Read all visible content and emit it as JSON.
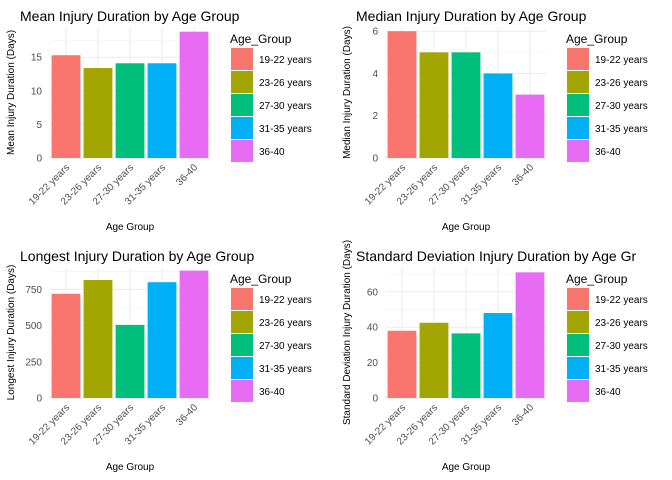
{
  "palette": [
    "#F8766D",
    "#A3A500",
    "#00BF7D",
    "#00B0F6",
    "#E76BF3"
  ],
  "chart_data": [
    {
      "type": "bar",
      "title": "Mean Injury Duration by Age Group",
      "xlabel": "Age Group",
      "ylabel": "Mean Injury Duration (Days)",
      "categories": [
        "19-22 years",
        "23-26 years",
        "27-30 years",
        "31-35 years",
        "36-40"
      ],
      "values": [
        15.3,
        13.4,
        14.1,
        14.1,
        18.8
      ],
      "ylim": [
        0,
        19.5
      ],
      "yticks": [
        0,
        5,
        10,
        15
      ],
      "grid": true,
      "legend": {
        "title": "Age_Group",
        "position": "right",
        "labels": [
          "19-22 years",
          "23-26 years",
          "27-30 years",
          "31-35 years",
          "36-40"
        ]
      }
    },
    {
      "type": "bar",
      "title": "Median Injury Duration by Age Group",
      "xlabel": "Age Group",
      "ylabel": "Median Injury Duration (Days)",
      "categories": [
        "19-22 years",
        "23-26 years",
        "27-30 years",
        "31-35 years",
        "36-40"
      ],
      "values": [
        6,
        5,
        5,
        4,
        3
      ],
      "ylim": [
        0,
        6.2
      ],
      "yticks": [
        0,
        2,
        4,
        6
      ],
      "grid": true,
      "legend": {
        "title": "Age_Group",
        "position": "right",
        "labels": [
          "19-22 years",
          "23-26 years",
          "27-30 years",
          "31-35 years",
          "36-40"
        ]
      }
    },
    {
      "type": "bar",
      "title": "Longest Injury Duration by Age Group",
      "xlabel": "Age Group",
      "ylabel": "Longest Injury Duration (Days)",
      "categories": [
        "19-22 years",
        "23-26 years",
        "27-30 years",
        "31-35 years",
        "36-40"
      ],
      "values": [
        720,
        815,
        505,
        800,
        880
      ],
      "ylim": [
        0,
        905
      ],
      "yticks": [
        0,
        250,
        500,
        750
      ],
      "grid": true,
      "legend": {
        "title": "Age_Group",
        "position": "right",
        "labels": [
          "19-22 years",
          "23-26 years",
          "27-30 years",
          "31-35 years",
          "36-40"
        ]
      }
    },
    {
      "type": "bar",
      "title": "Standard Deviation Injury Duration by Age Gr",
      "xlabel": "Age Group",
      "ylabel": "Standard Deviation Injury Duration (Days)",
      "categories": [
        "19-22 years",
        "23-26 years",
        "27-30 years",
        "31-35 years",
        "36-40"
      ],
      "values": [
        38,
        42.5,
        36.5,
        48,
        71
      ],
      "ylim": [
        0,
        74
      ],
      "yticks": [
        0,
        20,
        40,
        60
      ],
      "grid": true,
      "legend": {
        "title": "Age_Group",
        "position": "right",
        "labels": [
          "19-22 years",
          "23-26 years",
          "27-30 years",
          "31-35 years",
          "36-40"
        ]
      }
    }
  ]
}
